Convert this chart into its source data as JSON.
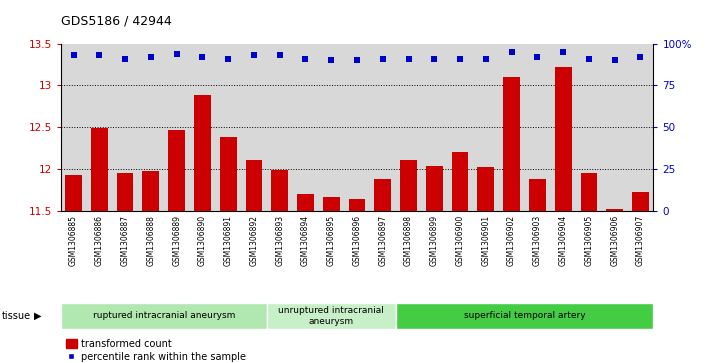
{
  "title": "GDS5186 / 42944",
  "samples": [
    "GSM1306885",
    "GSM1306886",
    "GSM1306887",
    "GSM1306888",
    "GSM1306889",
    "GSM1306890",
    "GSM1306891",
    "GSM1306892",
    "GSM1306893",
    "GSM1306894",
    "GSM1306895",
    "GSM1306896",
    "GSM1306897",
    "GSM1306898",
    "GSM1306899",
    "GSM1306900",
    "GSM1306901",
    "GSM1306902",
    "GSM1306903",
    "GSM1306904",
    "GSM1306905",
    "GSM1306906",
    "GSM1306907"
  ],
  "bar_values": [
    11.92,
    12.49,
    11.95,
    11.97,
    12.46,
    12.88,
    12.38,
    12.1,
    11.99,
    11.7,
    11.66,
    11.64,
    11.88,
    12.1,
    12.03,
    12.2,
    12.02,
    13.1,
    11.88,
    13.22,
    11.95,
    11.52,
    11.72
  ],
  "percentile_values": [
    93,
    93,
    91,
    92,
    94,
    92,
    91,
    93,
    93,
    91,
    90,
    90,
    91,
    91,
    91,
    91,
    91,
    95,
    92,
    95,
    91,
    90,
    92
  ],
  "ylim": [
    11.5,
    13.5
  ],
  "y2lim": [
    0,
    100
  ],
  "yticks": [
    11.5,
    12.0,
    12.5,
    13.0,
    13.5
  ],
  "y2ticks": [
    0,
    25,
    50,
    75,
    100
  ],
  "bar_color": "#cc0000",
  "dot_color": "#0000cc",
  "tissue_groups": [
    {
      "label": "ruptured intracranial aneurysm",
      "start": 0,
      "end": 8,
      "color": "#b0e8b0"
    },
    {
      "label": "unruptured intracranial\naneurysm",
      "start": 8,
      "end": 13,
      "color": "#c8f0c8"
    },
    {
      "label": "superficial temporal artery",
      "start": 13,
      "end": 23,
      "color": "#44cc44"
    }
  ],
  "legend_bar_label": "transformed count",
  "legend_dot_label": "percentile rank within the sample",
  "tissue_label": "tissue",
  "plot_bg_color": "#d8d8d8",
  "xtick_bg": "#d0d0d0"
}
